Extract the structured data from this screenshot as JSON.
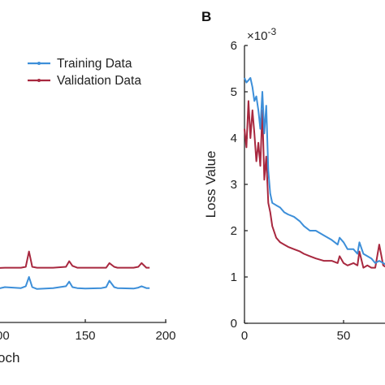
{
  "colors": {
    "training": "#3d8fd9",
    "validation": "#a8283f",
    "axis": "#262626"
  },
  "chart_data": [
    {
      "type": "line",
      "panel": "A",
      "xlabel": "Epoch",
      "xlabel_visible": "och",
      "ylabel": "",
      "xticks": [
        "",
        "150",
        "200"
      ],
      "xtick_prefix": "00",
      "xlim": [
        90,
        200
      ],
      "legend": {
        "position": "top-left",
        "entries": [
          "Training Data",
          "Validation Data"
        ]
      },
      "series": [
        {
          "name": "Training Data",
          "x": [
            90,
            100,
            110,
            113,
            115,
            117,
            120,
            130,
            138,
            140,
            142,
            145,
            150,
            160,
            163,
            165,
            168,
            170,
            180,
            183,
            185,
            188,
            190
          ],
          "y": [
            0.7,
            0.78,
            0.76,
            0.8,
            1.0,
            0.78,
            0.74,
            0.76,
            0.8,
            0.9,
            0.78,
            0.76,
            0.75,
            0.76,
            0.78,
            0.92,
            0.78,
            0.76,
            0.75,
            0.77,
            0.8,
            0.76,
            0.76
          ]
        },
        {
          "name": "Validation Data",
          "x": [
            90,
            100,
            110,
            113,
            115,
            117,
            120,
            130,
            138,
            140,
            142,
            145,
            150,
            160,
            163,
            165,
            168,
            170,
            180,
            183,
            185,
            188,
            190
          ],
          "y": [
            1.18,
            1.2,
            1.2,
            1.22,
            1.55,
            1.22,
            1.2,
            1.2,
            1.22,
            1.34,
            1.24,
            1.2,
            1.2,
            1.2,
            1.2,
            1.3,
            1.22,
            1.2,
            1.2,
            1.22,
            1.3,
            1.2,
            1.2
          ]
        }
      ],
      "ylim": [
        0,
        6
      ]
    },
    {
      "type": "line",
      "panel": "B",
      "ylabel": "Loss Value",
      "y_exponent": "×10",
      "y_exponent_power": "-3",
      "yticks": [
        "0",
        "1",
        "2",
        "3",
        "4",
        "5",
        "6"
      ],
      "ylim": [
        0,
        6
      ],
      "xticks": [
        "0",
        "50"
      ],
      "xlim": [
        0,
        86
      ],
      "series": [
        {
          "name": "Training Data",
          "x": [
            0,
            1,
            2,
            3,
            4,
            5,
            6,
            7,
            8,
            9,
            10,
            11,
            12,
            13,
            14,
            16,
            18,
            20,
            22,
            25,
            28,
            30,
            33,
            36,
            40,
            44,
            47,
            48,
            50,
            52,
            55,
            57,
            58,
            60,
            62,
            64,
            66,
            68,
            70,
            72,
            74,
            76,
            78,
            80,
            82,
            84,
            86
          ],
          "y": [
            5.3,
            5.2,
            5.25,
            5.3,
            5.1,
            4.8,
            4.9,
            4.6,
            4.2,
            5.0,
            4.1,
            4.7,
            3.3,
            2.8,
            2.6,
            2.55,
            2.5,
            2.4,
            2.35,
            2.3,
            2.2,
            2.1,
            2.0,
            2.0,
            1.9,
            1.8,
            1.7,
            1.85,
            1.75,
            1.6,
            1.6,
            1.5,
            1.75,
            1.5,
            1.45,
            1.4,
            1.3,
            1.35,
            1.3,
            1.25,
            1.2,
            1.45,
            1.3,
            1.2,
            1.1,
            1.05,
            1.0
          ]
        },
        {
          "name": "Validation Data",
          "x": [
            0,
            1,
            2,
            3,
            4,
            5,
            6,
            7,
            8,
            9,
            10,
            11,
            12,
            13,
            14,
            16,
            18,
            20,
            22,
            25,
            28,
            30,
            33,
            36,
            40,
            44,
            47,
            48,
            50,
            52,
            55,
            57,
            58,
            60,
            62,
            64,
            66,
            68,
            70,
            72,
            74,
            76,
            78,
            80,
            82,
            84,
            86
          ],
          "y": [
            4.2,
            3.8,
            4.8,
            4.0,
            4.6,
            4.1,
            3.5,
            3.9,
            3.4,
            4.6,
            3.1,
            3.6,
            2.6,
            2.4,
            2.1,
            1.85,
            1.75,
            1.7,
            1.65,
            1.6,
            1.55,
            1.5,
            1.45,
            1.4,
            1.35,
            1.35,
            1.3,
            1.45,
            1.3,
            1.25,
            1.3,
            1.25,
            1.55,
            1.2,
            1.25,
            1.2,
            1.2,
            1.7,
            1.25,
            1.2,
            1.15,
            1.25,
            1.2,
            1.15,
            1.1,
            1.05,
            1.0
          ]
        }
      ]
    }
  ]
}
